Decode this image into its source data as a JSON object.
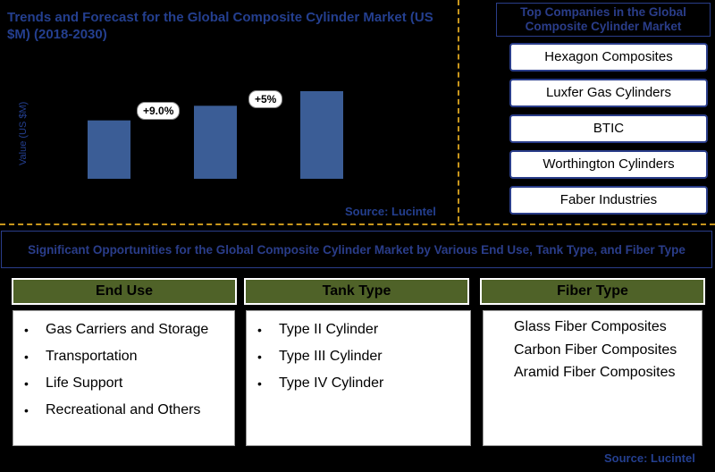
{
  "chart_data": {
    "type": "bar",
    "title": "Trends and Forecast for the Global Composite Cylinder Market (US $M) (2018-2030)",
    "ylabel": "Value (US $M)",
    "categories": [
      "",
      "",
      ""
    ],
    "values": [
      1.0,
      1.25,
      1.5
    ],
    "ylim": [
      0,
      1.7
    ],
    "annotations": [
      "+9.0%",
      "+5%"
    ],
    "source": "Source: Lucintel",
    "bar_color": "#3b5d96"
  },
  "companies": {
    "header": "Top Companies in the Global Composite Cylinder Market",
    "items": [
      "Hexagon Composites",
      "Luxfer Gas Cylinders",
      "BTIC",
      "Worthington Cylinders",
      "Faber Industries"
    ]
  },
  "opportunities": {
    "header": "Significant Opportunities for the Global Composite Cylinder Market by Various End Use, Tank Type, and Fiber Type",
    "end_use": {
      "title": "End Use",
      "items": [
        "Gas Carriers and Storage",
        "Transportation",
        "Life Support",
        "Recreational and Others"
      ]
    },
    "tank_type": {
      "title": "Tank Type",
      "items": [
        "Type II Cylinder",
        "Type III Cylinder",
        "Type IV Cylinder"
      ]
    },
    "fiber_type": {
      "title": "Fiber Type",
      "items": [
        "Glass Fiber Composites",
        "Carbon Fiber Composites",
        "Aramid Fiber Composites"
      ]
    }
  },
  "footer_source": "Source: Lucintel",
  "colors": {
    "accent_header": "#4f6228",
    "title_blue": "#2a3d8a",
    "divider": "#c8961c"
  }
}
